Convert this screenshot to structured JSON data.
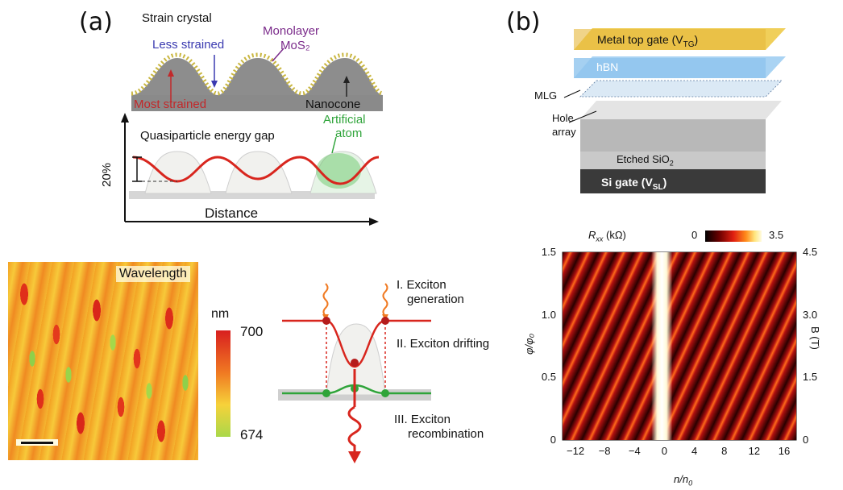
{
  "panels": {
    "a": "(a)",
    "b": "(b)"
  },
  "strain": {
    "title": "Strain crystal",
    "less_strained": "Less strained",
    "monolayer_line1": "Monolayer",
    "monolayer_line2": "MoS₂",
    "most_strained": "Most strained",
    "nanocone": "Nanocone",
    "gap_title": "Quasiparticle energy gap",
    "artificial_line1": "Artificial",
    "artificial_line2": "atom",
    "percent": "20%",
    "distance": "Distance"
  },
  "wavelength": {
    "title": "Wavelength",
    "unit": "nm",
    "max": "700",
    "min": "674"
  },
  "exciton": {
    "step1_line1": "I. Exciton",
    "step1_line2": "generation",
    "step2": "II. Exciton drifting",
    "step3_line1": "III. Exciton",
    "step3_line2": "recombination"
  },
  "device": {
    "top_gate": "Metal top gate (V",
    "top_gate_sub": "TG",
    "hbn": "hBN",
    "mlg": "MLG",
    "hole_line1": "Hole",
    "hole_line2": "array",
    "etched": "Etched SiO",
    "etched_sub": "2",
    "si_gate": "Si gate (V",
    "si_gate_sub": "SL"
  },
  "heatmap": {
    "cbar_label": "R",
    "cbar_label_sub": "xx",
    "cbar_unit": " (kΩ)",
    "cbar_min": "0",
    "cbar_max": "3.5",
    "xlabel": "n/n",
    "xlabel_sub": "0",
    "ylabel_left": "φ/φ₀",
    "ylabel_right": "B (T)",
    "x_ticks": [
      "−12",
      "−8",
      "−4",
      "0",
      "4",
      "8",
      "12",
      "16"
    ],
    "y_left_ticks": [
      "1.5",
      "1.0",
      "0.5",
      "0"
    ],
    "y_right_ticks": [
      "4.5",
      "3.0",
      "1.5",
      "0"
    ]
  },
  "colors": {
    "accent_red": "#d8261e",
    "gold": "#e8c24a",
    "hbn_blue": "#8ec4ee",
    "green": "#2fa43a",
    "blue_label": "#3a3ab0",
    "purple_label": "#7a2a8a"
  }
}
